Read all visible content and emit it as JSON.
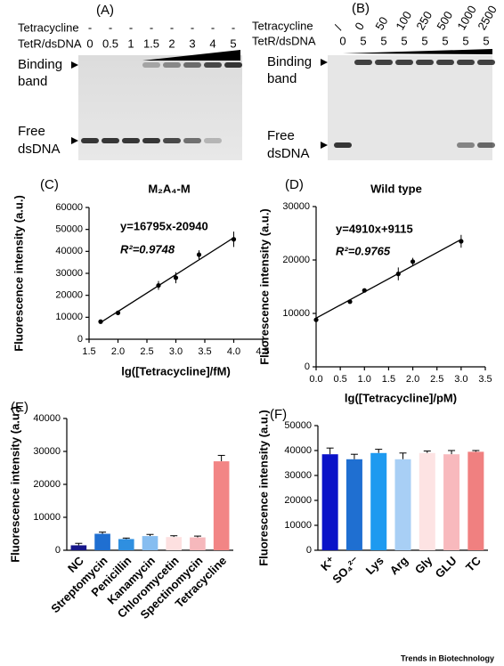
{
  "gels": [
    {
      "panel": "(A)",
      "row_labels": [
        "Tetracycline",
        "TetR/dsDNA"
      ],
      "tetracycline": [
        "-",
        "-",
        "-",
        "-",
        "-",
        "-",
        "-",
        "-"
      ],
      "ratio": [
        "0",
        "0.5",
        "1",
        "1.5",
        "2",
        "3",
        "4",
        "5"
      ],
      "binding_label": [
        "Binding",
        "band"
      ],
      "free_label": [
        "Free",
        "dsDNA"
      ]
    },
    {
      "panel": "(B)",
      "row_labels": [
        "Tetracycline",
        "TetR/dsDNA"
      ],
      "tetracycline": [
        "/",
        "0",
        "50",
        "100",
        "250",
        "500",
        "1000",
        "2500"
      ],
      "ratio": [
        "0",
        "5",
        "5",
        "5",
        "5",
        "5",
        "5",
        "5"
      ],
      "binding_label": [
        "Binding",
        "band"
      ],
      "free_label": [
        "Free",
        "dsDNA"
      ]
    }
  ],
  "chart_data": [
    {
      "type": "scatter",
      "panel": "(C)",
      "title": "M₂A₄-M",
      "equation": "y=16795x-20940",
      "r_squared": "R²=0.9748",
      "fit": {
        "slope": 16795,
        "intercept": -20940
      },
      "x": [
        1.7,
        2.0,
        2.7,
        3.0,
        3.4,
        4.0
      ],
      "values": [
        8000,
        12000,
        24500,
        28000,
        38500,
        45500
      ],
      "errors": [
        300,
        400,
        2000,
        2500,
        2000,
        3500
      ],
      "color": "#000000",
      "xlim": [
        1.5,
        4.5
      ],
      "xticks": [
        1.5,
        {
          "value": 2,
          "label": "2.0"
        },
        2.5,
        {
          "value": 3,
          "label": "3.0"
        },
        3.5,
        {
          "value": 4,
          "label": "4.0"
        },
        4.5
      ],
      "ylim": [
        0,
        60000
      ],
      "yticks": [
        0,
        10000,
        20000,
        30000,
        40000,
        50000,
        60000
      ],
      "xlabel": "lg([Tetracycline]/fM)",
      "ylabel": "Fluorescence intensity (a.u.)"
    },
    {
      "type": "scatter",
      "panel": "(D)",
      "title": "Wild type",
      "equation": "y=4910x+9115",
      "r_squared": "R²=0.9765",
      "fit": {
        "slope": 4910,
        "intercept": 9115
      },
      "x": [
        0,
        0.7,
        1.0,
        1.7,
        2.0,
        3.0
      ],
      "values": [
        8800,
        12200,
        14300,
        17400,
        19700,
        23500
      ],
      "errors": [
        500,
        300,
        300,
        1200,
        700,
        1200
      ],
      "color": "#000000",
      "xlim": [
        0,
        3.5
      ],
      "xticks": [
        {
          "value": 0,
          "label": "0.0"
        },
        0.5,
        {
          "value": 1,
          "label": "1.0"
        },
        1.5,
        {
          "value": 2,
          "label": "2.0"
        },
        2.5,
        {
          "value": 3,
          "label": "3.0"
        },
        3.5
      ],
      "ylim": [
        0,
        30000
      ],
      "yticks": [
        0,
        10000,
        20000,
        30000
      ],
      "xlabel": "lg([Tetracycline]/pM)",
      "ylabel": "Fluorescence intensity (a.u.)"
    },
    {
      "type": "bar",
      "panel": "(E)",
      "categories": [
        "NC",
        "Streptomycin",
        "Penicillin",
        "Kanamycin",
        "Chloromycetin",
        "Spectinomycin",
        "Tetracycline"
      ],
      "values": [
        1500,
        5000,
        3400,
        4300,
        4000,
        3900,
        27000
      ],
      "errors": [
        600,
        500,
        300,
        500,
        400,
        400,
        1800
      ],
      "colors": [
        "#16168a",
        "#1f6fd1",
        "#2f8fe0",
        "#86bdf0",
        "#fde0e0",
        "#f6b8bc",
        "#f28585"
      ],
      "ylim": [
        0,
        40000
      ],
      "yticks": [
        0,
        10000,
        20000,
        30000,
        40000
      ],
      "ylabel": "Fluorescence intensity (a.u.)"
    },
    {
      "type": "bar",
      "panel": "(F)",
      "categories": [
        "K⁺",
        "SO₄²⁻",
        "Lys",
        "Arg",
        "Gly",
        "GLU",
        "TC"
      ],
      "values": [
        38500,
        36500,
        39000,
        36500,
        39000,
        38500,
        39500
      ],
      "errors": [
        2500,
        2000,
        1500,
        2500,
        800,
        1500,
        500
      ],
      "colors": [
        "#0a12c8",
        "#1f6fd1",
        "#1e9af0",
        "#a8cff5",
        "#fde3e3",
        "#f8b9bd",
        "#f08080"
      ],
      "ylim": [
        0,
        50000
      ],
      "yticks": [
        0,
        10000,
        20000,
        30000,
        40000,
        50000
      ],
      "ylabel": "Fluorescence intensity (a.u.)"
    }
  ],
  "footer": "Trends in Biotechnology"
}
